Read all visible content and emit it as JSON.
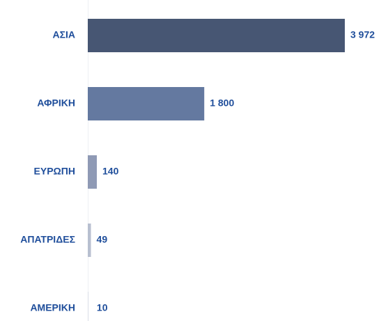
{
  "chart_data": {
    "type": "hbar",
    "categories": [
      "ΑΣΙΑ",
      "ΑΦΡΙΚΗ",
      "ΕΥΡΩΠΗ",
      "ΑΠΑΤΡΙΔΕΣ",
      "ΑΜΕΡΙΚΗ"
    ],
    "values": [
      3972,
      1800,
      140,
      49,
      10
    ],
    "value_labels": [
      "3 972",
      "1 800",
      "140",
      "49",
      "10"
    ],
    "colors": [
      "#475673",
      "#6479a0",
      "#8f9ab5",
      "#b8bfd0",
      "#d9dde6"
    ]
  }
}
